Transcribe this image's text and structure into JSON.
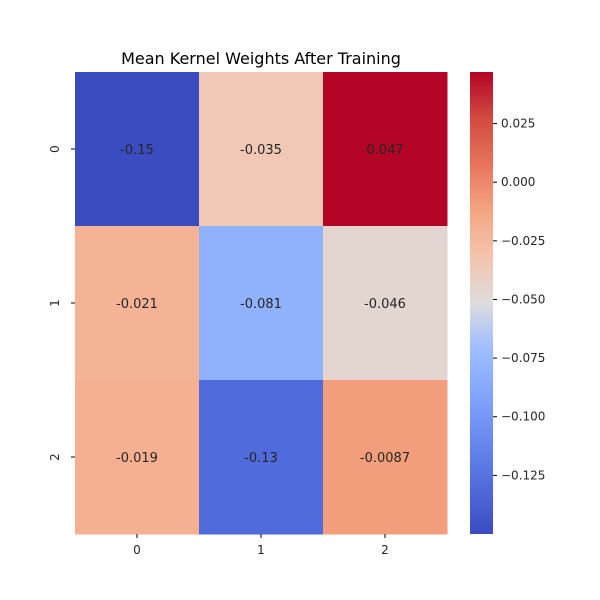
{
  "chart_data": {
    "type": "heatmap",
    "title": "Mean Kernel Weights After Training",
    "xlabel": "",
    "ylabel": "",
    "x_categories": [
      "0",
      "1",
      "2"
    ],
    "y_categories": [
      "0",
      "1",
      "2"
    ],
    "values": [
      [
        -0.15,
        -0.035,
        0.047
      ],
      [
        -0.021,
        -0.081,
        -0.046
      ],
      [
        -0.019,
        -0.13,
        -0.0087
      ]
    ],
    "annotations": [
      [
        "-0.15",
        "-0.035",
        "0.047"
      ],
      [
        "-0.021",
        "-0.081",
        "-0.046"
      ],
      [
        "-0.019",
        "-0.13",
        "-0.0087"
      ]
    ],
    "colormap": "coolwarm",
    "vmin": -0.15,
    "vmax": 0.047,
    "colorbar": {
      "ticks": [
        0.025,
        0.0,
        -0.025,
        -0.05,
        -0.075,
        -0.1,
        -0.125
      ],
      "tick_labels": [
        "0.025",
        "0.000",
        "−0.025",
        "−0.050",
        "−0.075",
        "−0.100",
        "−0.125"
      ]
    },
    "grid": false,
    "legend": "colorbar-right"
  }
}
